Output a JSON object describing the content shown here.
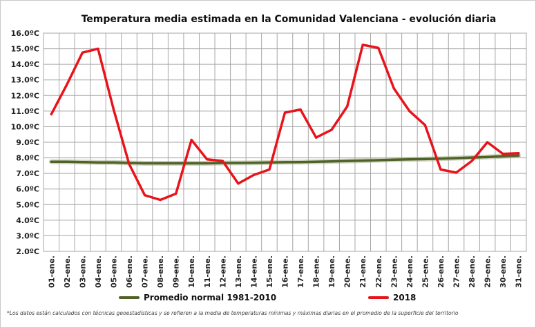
{
  "chart_data": {
    "type": "line",
    "title": "Temperatura media estimada en la Comunidad Valenciana - evolución diaria",
    "xlabel": "",
    "ylabel": "",
    "ylim": [
      2.0,
      16.0
    ],
    "y_ticks": [
      "2.0ºC",
      "3.0ºC",
      "4.0ºC",
      "5.0ºC",
      "6.0ºC",
      "7.0ºC",
      "8.0ºC",
      "9.0ºC",
      "10.0ºC",
      "11.0ºC",
      "12.0ºC",
      "13.0ºC",
      "14.0ºC",
      "15.0ºC",
      "16.0ºC"
    ],
    "grid": true,
    "legend_position": "bottom",
    "categories": [
      "01-ene.",
      "02-ene.",
      "03-ene.",
      "04-ene.",
      "05-ene.",
      "06-ene.",
      "07-ene.",
      "08-ene.",
      "09-ene.",
      "10-ene.",
      "11-ene.",
      "12-ene.",
      "13-ene.",
      "14-ene.",
      "15-ene.",
      "16-ene.",
      "17-ene.",
      "18-ene.",
      "19-ene.",
      "20-ene.",
      "21-ene.",
      "22-ene.",
      "23-ene.",
      "24-ene.",
      "25-ene.",
      "26-ene.",
      "27-ene.",
      "28-ene.",
      "29-ene.",
      "30-ene.",
      "31-ene."
    ],
    "series": [
      {
        "name": "Promedio normal 1981-2010",
        "color": "#4f6228",
        "values": [
          7.75,
          7.75,
          7.73,
          7.7,
          7.7,
          7.67,
          7.65,
          7.65,
          7.65,
          7.65,
          7.65,
          7.67,
          7.67,
          7.68,
          7.7,
          7.72,
          7.73,
          7.75,
          7.77,
          7.8,
          7.82,
          7.85,
          7.88,
          7.9,
          7.92,
          7.95,
          7.98,
          8.02,
          8.05,
          8.1,
          8.15
        ]
      },
      {
        "name": "2018",
        "color": "#e8131b",
        "values": [
          10.8,
          12.7,
          14.75,
          15.0,
          11.1,
          7.6,
          5.6,
          5.3,
          5.7,
          9.15,
          7.9,
          7.8,
          6.35,
          6.9,
          7.25,
          10.9,
          11.1,
          9.3,
          9.8,
          11.3,
          15.25,
          15.05,
          12.45,
          11.0,
          10.1,
          7.25,
          7.05,
          7.8,
          9.0,
          8.25,
          8.3
        ]
      }
    ],
    "footnote": "*Los datos están calculados con técnicas geoestadísticas y se refieren a la media de temperaturas mínimas y máximas diarias en el promedio de la superficie del territorio"
  }
}
